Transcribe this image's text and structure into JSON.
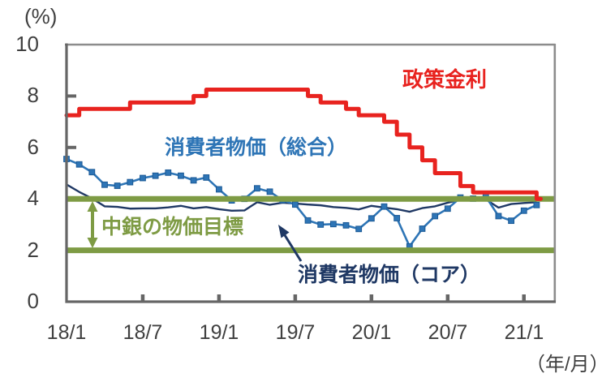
{
  "annotations": {
    "policy_rate": "政策金利",
    "cpi_headline": "消費者物価（総合）",
    "target": "中銀の物価目標",
    "cpi_core": "消費者物価（コア）"
  },
  "colors": {
    "policy_red": "#e8231f",
    "headline_blue": "#2e75b6",
    "core_navy": "#1f3864",
    "band_olive": "#7e9b44",
    "axis_dark": "#666666",
    "border_gray": "#8c8c8c",
    "text_dark": "#404040"
  },
  "chart_data": {
    "type": "line",
    "title": "",
    "y_unit": "(%)",
    "x_unit": "（年/月）",
    "ylim": [
      0,
      10
    ],
    "y_ticks": [
      0,
      2,
      4,
      6,
      8,
      10
    ],
    "y_tick_labels": [
      "10",
      "8",
      "6",
      "4",
      "2",
      "0"
    ],
    "x_tick_labels": [
      "18/1",
      "18/7",
      "19/1",
      "19/7",
      "20/1",
      "20/7",
      "21/1"
    ],
    "grid": false,
    "legend_position": "inline-annotations",
    "target_band": {
      "label": "中銀の物価目標",
      "lower": 2,
      "upper": 4
    },
    "x_months": [
      "18/1",
      "18/2",
      "18/3",
      "18/4",
      "18/5",
      "18/6",
      "18/7",
      "18/8",
      "18/9",
      "18/10",
      "18/11",
      "18/12",
      "19/1",
      "19/2",
      "19/3",
      "19/4",
      "19/5",
      "19/6",
      "19/7",
      "19/8",
      "19/9",
      "19/10",
      "19/11",
      "19/12",
      "20/1",
      "20/2",
      "20/3",
      "20/4",
      "20/5",
      "20/6",
      "20/7",
      "20/8",
      "20/9",
      "20/10",
      "20/11",
      "20/12",
      "21/1",
      "21/2"
    ],
    "series": [
      {
        "key": "policy_rate",
        "name": "政策金利",
        "style": "step",
        "values": [
          7.25,
          7.5,
          7.5,
          7.5,
          7.5,
          7.75,
          7.75,
          7.75,
          7.75,
          7.75,
          8.0,
          8.25,
          8.25,
          8.25,
          8.25,
          8.25,
          8.25,
          8.25,
          8.25,
          8.0,
          7.75,
          7.75,
          7.5,
          7.25,
          7.25,
          7.0,
          6.5,
          6.0,
          5.5,
          5.0,
          5.0,
          4.5,
          4.25,
          4.25,
          4.25,
          4.25,
          4.25,
          4.0
        ]
      },
      {
        "key": "cpi_headline",
        "name": "消費者物価（総合）",
        "style": "line-square-markers",
        "values": [
          5.55,
          5.34,
          5.04,
          4.55,
          4.51,
          4.65,
          4.81,
          4.9,
          5.02,
          4.9,
          4.72,
          4.83,
          4.37,
          3.94,
          4.0,
          4.41,
          4.28,
          3.95,
          3.78,
          3.16,
          3.0,
          3.02,
          2.97,
          2.83,
          3.24,
          3.7,
          3.25,
          2.15,
          2.84,
          3.33,
          3.62,
          4.05,
          4.01,
          4.09,
          3.33,
          3.15,
          3.54,
          3.76
        ]
      },
      {
        "key": "cpi_core",
        "name": "消費者物価（コア）",
        "style": "line",
        "values": [
          4.56,
          4.27,
          4.02,
          3.71,
          3.69,
          3.62,
          3.63,
          3.63,
          3.67,
          3.73,
          3.63,
          3.68,
          3.6,
          3.54,
          3.55,
          3.87,
          3.77,
          3.85,
          3.82,
          3.78,
          3.75,
          3.68,
          3.65,
          3.59,
          3.73,
          3.66,
          3.6,
          3.5,
          3.64,
          3.71,
          3.85,
          3.97,
          3.99,
          3.98,
          3.66,
          3.8,
          3.84,
          3.87
        ]
      }
    ]
  }
}
